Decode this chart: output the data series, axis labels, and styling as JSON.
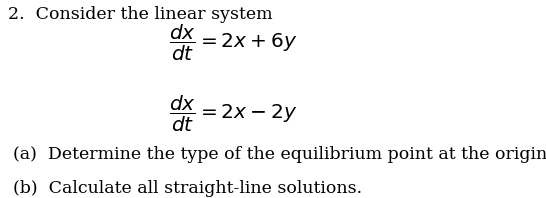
{
  "background_color": "#ffffff",
  "number": "2.",
  "intro_text": "Consider the linear system",
  "eq1_math": "$\\dfrac{dx}{dt} = 2x + 6y$",
  "eq2_math": "$\\dfrac{dx}{dt} = 2x - 2y$",
  "part_a": "(a)  Determine the type of the equilibrium point at the origin.",
  "part_b": "(b)  Calculate all straight-line solutions.",
  "font_size_main": 12.5,
  "font_size_eq": 14.5,
  "text_color": "#000000"
}
